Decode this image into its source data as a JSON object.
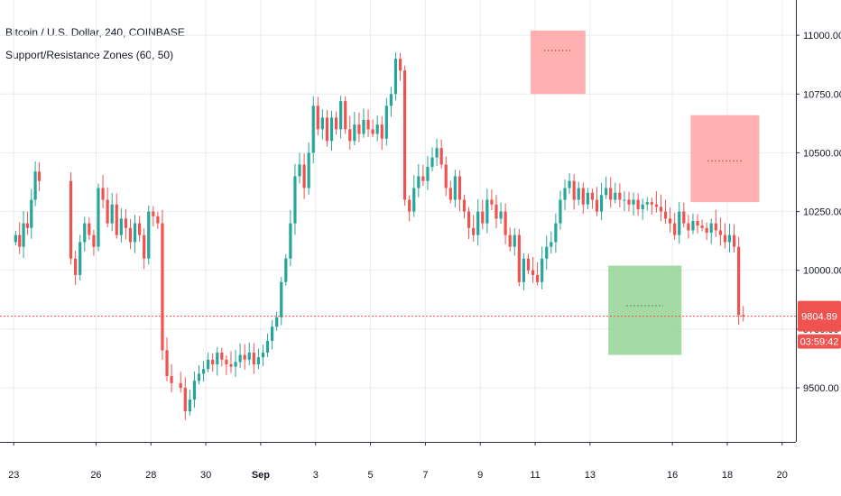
{
  "header": {
    "title": "Bitcoin / U.S. Dollar, 240, COINBASE",
    "indicator": "Support/Resistance Zones (60, 50)"
  },
  "colors": {
    "up": "#26a69a",
    "down": "#ef5350",
    "resistance_zone": "#ff9e9e",
    "support_zone": "#8fd18f",
    "grid": "#e8ecf0",
    "price_line": "#ef5350"
  },
  "chart_data": {
    "type": "candlestick",
    "symbol": "Bitcoin / U.S. Dollar",
    "interval": "240",
    "exchange": "COINBASE",
    "x_tick_labels": [
      {
        "x": "2019-08-23",
        "label": "23"
      },
      {
        "x": "2019-08-26",
        "label": "26"
      },
      {
        "x": "2019-08-28",
        "label": "28"
      },
      {
        "x": "2019-08-30",
        "label": "30"
      },
      {
        "x": "2019-09-01",
        "label": "Sep"
      },
      {
        "x": "2019-09-03",
        "label": "3"
      },
      {
        "x": "2019-09-05",
        "label": "5"
      },
      {
        "x": "2019-09-07",
        "label": "7"
      },
      {
        "x": "2019-09-09",
        "label": "9"
      },
      {
        "x": "2019-09-11",
        "label": "11"
      },
      {
        "x": "2019-09-13",
        "label": "13"
      },
      {
        "x": "2019-09-16",
        "label": "16"
      },
      {
        "x": "2019-09-18",
        "label": "18"
      },
      {
        "x": "2019-09-20",
        "label": "20"
      }
    ],
    "y_tick_labels": [
      "9500.00",
      "9750.00",
      "10000.00",
      "10250.00",
      "10500.00",
      "10750.00",
      "11000.00"
    ],
    "ylim": [
      9270,
      11150
    ],
    "grid": true,
    "last_price": {
      "value": 9804.89,
      "label": "9804.89"
    },
    "countdown": "03:59:42",
    "close_series": [
      {
        "date": "2019-08-23",
        "values": [
          10150,
          10100,
          10200,
          10180,
          10300,
          10420,
          10380
        ]
      },
      {
        "date": "2019-08-25",
        "values": [
          10050,
          9980,
          10120,
          10200,
          10150,
          10100
        ]
      },
      {
        "date": "2019-08-26",
        "values": [
          10350,
          10300,
          10200,
          10280,
          10150,
          10220
        ]
      },
      {
        "date": "2019-08-27",
        "values": [
          10180,
          10120,
          10200,
          10150,
          10050,
          10250
        ]
      },
      {
        "date": "2019-08-28",
        "values": [
          10230,
          10200,
          9660,
          9550,
          9520
        ]
      },
      {
        "date": "2019-08-29",
        "values": [
          9500,
          9400,
          9450,
          9530,
          9560,
          9580
        ]
      },
      {
        "date": "2019-08-30",
        "values": [
          9620,
          9600,
          9650,
          9620,
          9600,
          9590
        ]
      },
      {
        "date": "2019-08-31",
        "values": [
          9610,
          9640,
          9620,
          9650,
          9600,
          9630
        ]
      },
      {
        "date": "2019-09-01",
        "values": [
          9650,
          9700,
          9760,
          9800,
          9950,
          10050
        ]
      },
      {
        "date": "2019-09-02",
        "values": [
          10200,
          10400,
          10450,
          10350,
          10500,
          10700
        ]
      },
      {
        "date": "2019-09-03",
        "values": [
          10600,
          10650,
          10550,
          10650,
          10600,
          10720
        ]
      },
      {
        "date": "2019-09-04",
        "values": [
          10600,
          10550,
          10620,
          10580,
          10640,
          10600
        ]
      },
      {
        "date": "2019-09-05",
        "values": [
          10580,
          10620,
          10560,
          10700,
          10750,
          10900
        ]
      },
      {
        "date": "2019-09-06",
        "values": [
          10850,
          10300,
          10250,
          10350,
          10400,
          10380
        ]
      },
      {
        "date": "2019-09-07",
        "values": [
          10440,
          10480,
          10520,
          10450,
          10350,
          10300
        ]
      },
      {
        "date": "2019-09-08",
        "values": [
          10400,
          10300,
          10250,
          10180,
          10150,
          10250
        ]
      },
      {
        "date": "2019-09-09",
        "values": [
          10200,
          10300,
          10280,
          10220,
          10250,
          10150
        ]
      },
      {
        "date": "2019-09-10",
        "values": [
          10100,
          10150,
          9950,
          10050,
          10000,
          9980
        ]
      },
      {
        "date": "2019-09-11",
        "values": [
          9950,
          10050,
          10100,
          10120,
          10200,
          10300
        ]
      },
      {
        "date": "2019-09-12",
        "values": [
          10350,
          10380,
          10300,
          10350,
          10280,
          10330
        ]
      },
      {
        "date": "2019-09-13",
        "values": [
          10300,
          10250,
          10320,
          10350,
          10300,
          10330
        ]
      },
      {
        "date": "2019-09-14",
        "values": [
          10300,
          10300,
          10280,
          10300,
          10260,
          10280
        ]
      },
      {
        "date": "2019-09-15",
        "values": [
          10290,
          10280,
          10270,
          10250,
          10220,
          10200
        ]
      },
      {
        "date": "2019-09-16",
        "values": [
          10150,
          10250,
          10200,
          10170,
          10210,
          10190
        ]
      },
      {
        "date": "2019-09-17",
        "values": [
          10180,
          10160,
          10200,
          10170,
          10150,
          10120
        ]
      },
      {
        "date": "2019-09-18",
        "values": [
          10150,
          10100,
          9810,
          9805
        ]
      }
    ],
    "zones": [
      {
        "kind": "resistance",
        "from": "2019-09-10T20:00",
        "to": "2019-09-12T20:00",
        "low": 10750,
        "high": 11020,
        "level": 10935
      },
      {
        "kind": "resistance",
        "from": "2019-09-16T16:00",
        "to": "2019-09-19T04:00",
        "low": 10290,
        "high": 10660,
        "level": 10465
      },
      {
        "kind": "support",
        "from": "2019-09-13T16:00",
        "to": "2019-09-16T08:00",
        "low": 9640,
        "high": 10020,
        "level": 9850
      }
    ]
  }
}
